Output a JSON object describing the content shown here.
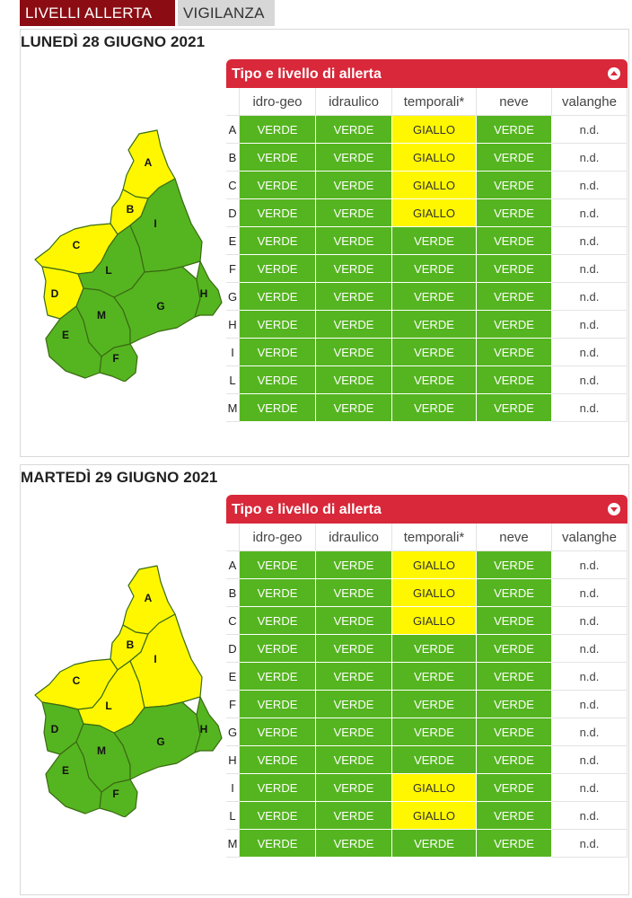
{
  "tabs": {
    "active": "LIVELLI ALLERTA",
    "inactive": "VIGILANZA"
  },
  "colors": {
    "verde": "#55b520",
    "giallo": "#fff700",
    "header_red": "#d8283a",
    "tab_dark_red": "#8b0d13"
  },
  "days": [
    {
      "title": "LUNEDÌ 28 GIUGNO 2021",
      "panel_title": "Tipo e livello di allerta",
      "toggle_icon": "collapse-up-icon",
      "columns": [
        "idro-geo",
        "idraulico",
        "temporali*",
        "neve",
        "valanghe"
      ],
      "map_zone_levels": {
        "A": "GIALLO",
        "B": "GIALLO",
        "C": "GIALLO",
        "D": "GIALLO",
        "E": "VERDE",
        "F": "VERDE",
        "G": "VERDE",
        "H": "VERDE",
        "I": "VERDE",
        "L": "VERDE",
        "M": "VERDE"
      },
      "rows": [
        {
          "zone": "A",
          "values": [
            "VERDE",
            "VERDE",
            "GIALLO",
            "VERDE",
            "n.d."
          ]
        },
        {
          "zone": "B",
          "values": [
            "VERDE",
            "VERDE",
            "GIALLO",
            "VERDE",
            "n.d."
          ]
        },
        {
          "zone": "C",
          "values": [
            "VERDE",
            "VERDE",
            "GIALLO",
            "VERDE",
            "n.d."
          ]
        },
        {
          "zone": "D",
          "values": [
            "VERDE",
            "VERDE",
            "GIALLO",
            "VERDE",
            "n.d."
          ]
        },
        {
          "zone": "E",
          "values": [
            "VERDE",
            "VERDE",
            "VERDE",
            "VERDE",
            "n.d."
          ]
        },
        {
          "zone": "F",
          "values": [
            "VERDE",
            "VERDE",
            "VERDE",
            "VERDE",
            "n.d."
          ]
        },
        {
          "zone": "G",
          "values": [
            "VERDE",
            "VERDE",
            "VERDE",
            "VERDE",
            "n.d."
          ]
        },
        {
          "zone": "H",
          "values": [
            "VERDE",
            "VERDE",
            "VERDE",
            "VERDE",
            "n.d."
          ]
        },
        {
          "zone": "I",
          "values": [
            "VERDE",
            "VERDE",
            "VERDE",
            "VERDE",
            "n.d."
          ]
        },
        {
          "zone": "L",
          "values": [
            "VERDE",
            "VERDE",
            "VERDE",
            "VERDE",
            "n.d."
          ]
        },
        {
          "zone": "M",
          "values": [
            "VERDE",
            "VERDE",
            "VERDE",
            "VERDE",
            "n.d."
          ]
        }
      ]
    },
    {
      "title": "MARTEDÌ 29 GIUGNO 2021",
      "panel_title": "Tipo e livello di allerta",
      "toggle_icon": "expand-down-icon",
      "columns": [
        "idro-geo",
        "idraulico",
        "temporali*",
        "neve",
        "valanghe"
      ],
      "map_zone_levels": {
        "A": "GIALLO",
        "B": "GIALLO",
        "C": "GIALLO",
        "D": "VERDE",
        "E": "VERDE",
        "F": "VERDE",
        "G": "VERDE",
        "H": "VERDE",
        "I": "GIALLO",
        "L": "GIALLO",
        "M": "VERDE"
      },
      "rows": [
        {
          "zone": "A",
          "values": [
            "VERDE",
            "VERDE",
            "GIALLO",
            "VERDE",
            "n.d."
          ]
        },
        {
          "zone": "B",
          "values": [
            "VERDE",
            "VERDE",
            "GIALLO",
            "VERDE",
            "n.d."
          ]
        },
        {
          "zone": "C",
          "values": [
            "VERDE",
            "VERDE",
            "GIALLO",
            "VERDE",
            "n.d."
          ]
        },
        {
          "zone": "D",
          "values": [
            "VERDE",
            "VERDE",
            "VERDE",
            "VERDE",
            "n.d."
          ]
        },
        {
          "zone": "E",
          "values": [
            "VERDE",
            "VERDE",
            "VERDE",
            "VERDE",
            "n.d."
          ]
        },
        {
          "zone": "F",
          "values": [
            "VERDE",
            "VERDE",
            "VERDE",
            "VERDE",
            "n.d."
          ]
        },
        {
          "zone": "G",
          "values": [
            "VERDE",
            "VERDE",
            "VERDE",
            "VERDE",
            "n.d."
          ]
        },
        {
          "zone": "H",
          "values": [
            "VERDE",
            "VERDE",
            "VERDE",
            "VERDE",
            "n.d."
          ]
        },
        {
          "zone": "I",
          "values": [
            "VERDE",
            "VERDE",
            "GIALLO",
            "VERDE",
            "n.d."
          ]
        },
        {
          "zone": "L",
          "values": [
            "VERDE",
            "VERDE",
            "GIALLO",
            "VERDE",
            "n.d."
          ]
        },
        {
          "zone": "M",
          "values": [
            "VERDE",
            "VERDE",
            "VERDE",
            "VERDE",
            "n.d."
          ]
        }
      ]
    }
  ]
}
